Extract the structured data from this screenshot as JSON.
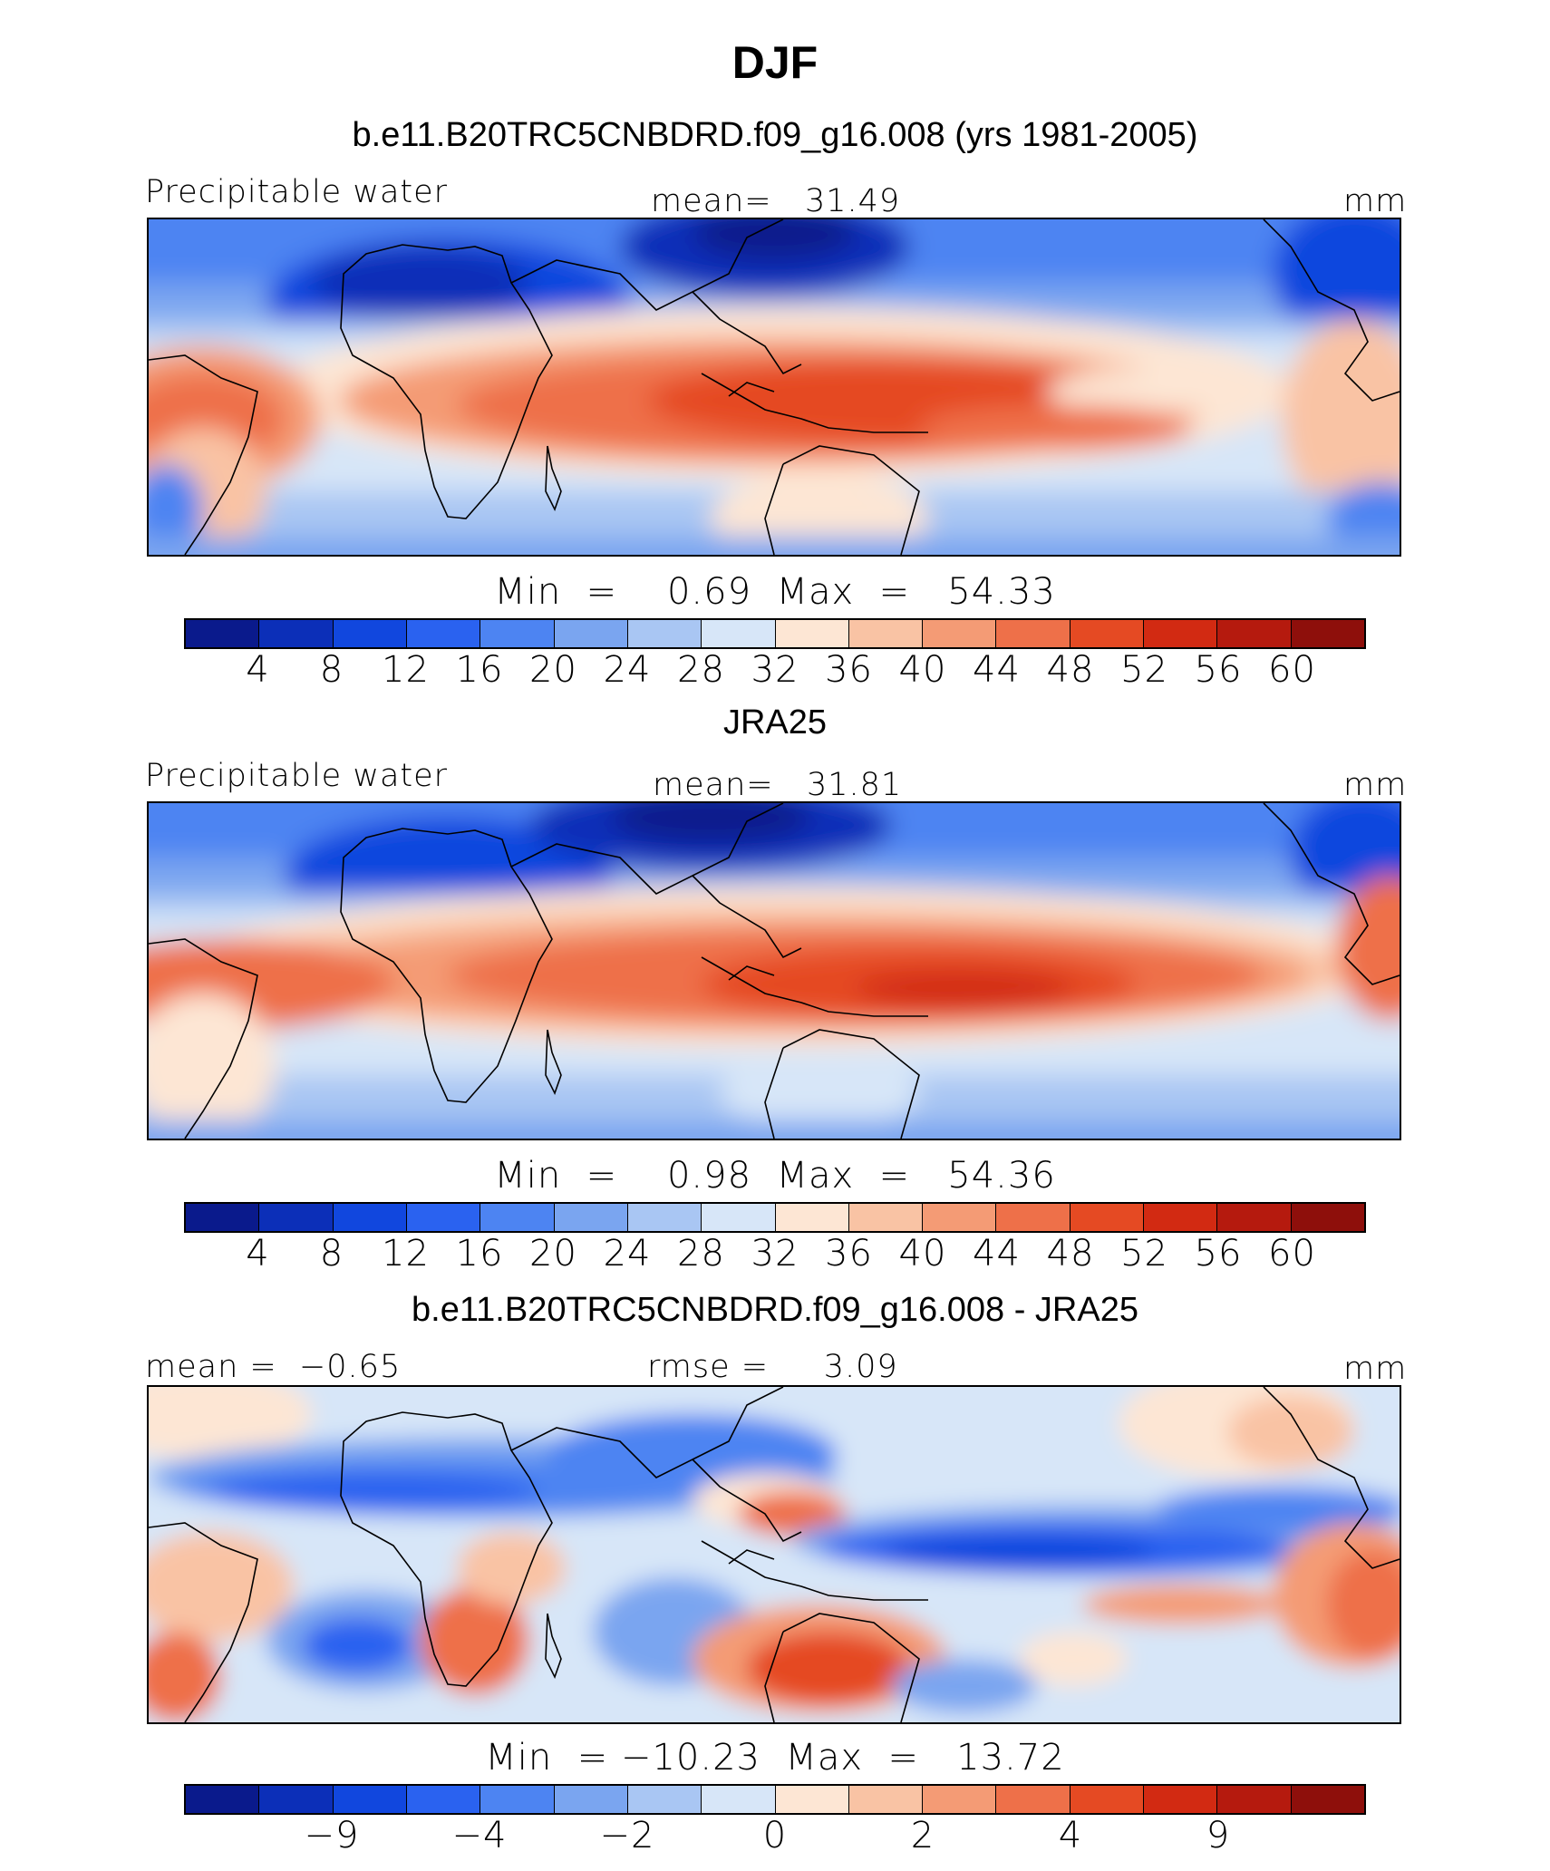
{
  "title": "DJF",
  "colorbar_colors": [
    "#0a1a8c",
    "#0c2fb8",
    "#1147de",
    "#2a62f0",
    "#4d84f2",
    "#7aa5f0",
    "#a9c6f3",
    "#d7e6f8",
    "#fde6d4",
    "#f9c3a4",
    "#f49b75",
    "#ee7049",
    "#e54a23",
    "#d22a12",
    "#b51a0e",
    "#8e0f0b"
  ],
  "panels": [
    {
      "title": "b.e11.B20TRC5CNBDRD.f09_g16.008 (yrs 1981-2005)",
      "left_label": "Precipitable water",
      "center_label": "mean=   31.49",
      "right_label": "mm",
      "minmax": "Min  =    0.69  Max  =   54.33",
      "ticks": [
        "4",
        "8",
        "12",
        "16",
        "20",
        "24",
        "28",
        "32",
        "36",
        "40",
        "44",
        "48",
        "52",
        "56",
        "60"
      ]
    },
    {
      "title": "JRA25",
      "left_label": "Precipitable water",
      "center_label": "mean=   31.81",
      "right_label": "mm",
      "minmax": "Min  =    0.98  Max  =   54.36",
      "ticks": [
        "4",
        "8",
        "12",
        "16",
        "20",
        "24",
        "28",
        "32",
        "36",
        "40",
        "44",
        "48",
        "52",
        "56",
        "60"
      ]
    },
    {
      "title": "b.e11.B20TRC5CNBDRD.f09_g16.008 - JRA25",
      "left_label": "mean =  −0.65",
      "center_label": "rmse =     3.09",
      "right_label": "mm",
      "minmax": "Min  = −10.23  Max  =   13.72",
      "ticks": [
        "−9",
        "−4",
        "−2",
        "0",
        "2",
        "4",
        "9"
      ]
    }
  ]
}
